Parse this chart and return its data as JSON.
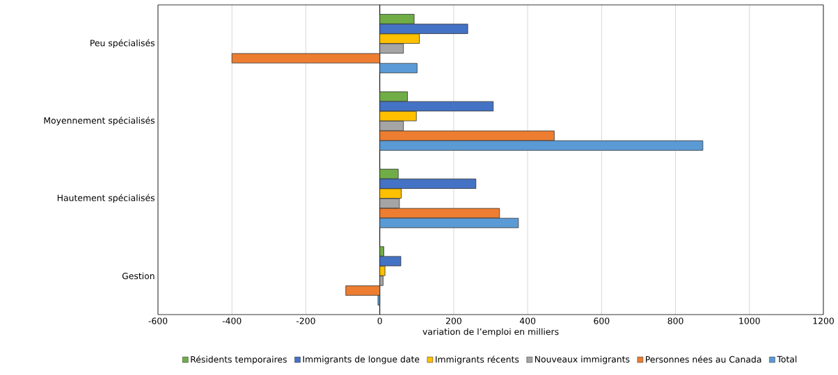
{
  "chart_data": {
    "type": "bar",
    "orientation": "horizontal",
    "categories": [
      "Peu spécialisés",
      "Moyennement spécialisés",
      "Hautement spécialisés",
      "Gestion"
    ],
    "series": [
      {
        "name": "Résidents temporaires",
        "color": "#70ad47",
        "values": [
          93,
          75,
          50,
          11
        ]
      },
      {
        "name": "Immigrants de longue date",
        "color": "#4472c4",
        "values": [
          238,
          307,
          260,
          57
        ]
      },
      {
        "name": "Immigrants récents",
        "color": "#ffc000",
        "values": [
          107,
          99,
          58,
          14
        ]
      },
      {
        "name": "Nouveaux immigrants",
        "color": "#a5a5a5",
        "values": [
          64,
          64,
          53,
          9
        ]
      },
      {
        "name": "Personnes nées au Canada",
        "color": "#ed7d31",
        "values": [
          -400,
          472,
          324,
          -92
        ]
      },
      {
        "name": "Total",
        "color": "#5b9bd5",
        "values": [
          101,
          874,
          375,
          -5
        ]
      }
    ],
    "xlim": [
      -600,
      1200
    ],
    "xticks": [
      -600,
      -400,
      -200,
      0,
      200,
      400,
      600,
      800,
      1000,
      1200
    ],
    "xlabel": "variation de l’emploi en milliers",
    "grid": "x",
    "legend": "bottom"
  }
}
